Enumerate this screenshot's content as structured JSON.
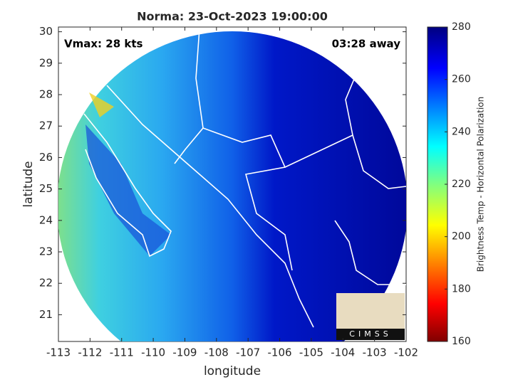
{
  "chart_data": {
    "type": "map",
    "title": "Norma: 23-Oct-2023 19:00:00",
    "annotations": [
      "Vmax: 28 kts",
      "03:28 away"
    ],
    "xlabel": "longitude",
    "ylabel": "latitude",
    "xlim": [
      -113,
      -102
    ],
    "xticks": [
      -113,
      -112,
      -111,
      -110,
      -109,
      -108,
      -107,
      -106,
      -105,
      -104,
      -103,
      -102
    ],
    "ylim": [
      20.15,
      30.15
    ],
    "yticks": [
      21,
      22,
      23,
      24,
      25,
      26,
      27,
      28,
      29,
      30
    ],
    "colorbar": {
      "label": "Brightness Temp - Horizontal Polarization",
      "lim": [
        160,
        280
      ],
      "ticks": [
        160,
        180,
        200,
        220,
        240,
        260,
        280
      ]
    },
    "logo": "CIMSS"
  }
}
